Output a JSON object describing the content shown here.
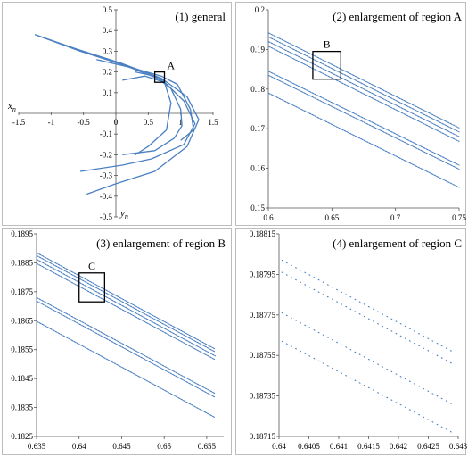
{
  "chart_data": [
    {
      "type": "scatter",
      "title": "(1) general",
      "xlabel": "x",
      "xlabel_sub": "n",
      "ylabel": "y",
      "ylabel_sub": "n",
      "xlim": [
        -1.5,
        1.5
      ],
      "ylim": [
        -0.5,
        0.5
      ],
      "x_ticks": [
        "-1.5",
        "-1",
        "-0.5",
        "0",
        "0.5",
        "1",
        "1.5"
      ],
      "y_ticks": [
        "0.5",
        "0.4",
        "0.3",
        "0.2",
        "0.1",
        "0",
        "-0.1",
        "-0.2",
        "-0.3",
        "-0.4",
        "-0.5"
      ],
      "marker_color": "#4a7fc1",
      "box_label": "A",
      "box_region": {
        "x": [
          0.6,
          0.75
        ],
        "y": [
          0.15,
          0.2
        ]
      },
      "series": [
        {
          "values": [
            [
              -1.25,
              0.38
            ],
            [
              -0.6,
              0.31
            ],
            [
              0.1,
              0.24
            ],
            [
              0.7,
              0.17
            ],
            [
              1.1,
              0.08
            ],
            [
              1.28,
              -0.03
            ],
            [
              1.1,
              -0.16
            ],
            [
              0.6,
              -0.28
            ],
            [
              0.0,
              -0.34
            ],
            [
              -0.45,
              -0.39
            ]
          ]
        },
        {
          "values": [
            [
              -1.25,
              0.38
            ],
            [
              -0.55,
              0.3
            ],
            [
              0.15,
              0.23
            ],
            [
              0.72,
              0.16
            ],
            [
              1.05,
              0.06
            ],
            [
              1.22,
              -0.05
            ],
            [
              1.05,
              -0.15
            ],
            [
              0.55,
              -0.22
            ],
            [
              0.1,
              -0.25
            ],
            [
              -0.55,
              -0.28
            ]
          ]
        },
        {
          "values": [
            [
              0.3,
              0.2
            ],
            [
              0.6,
              0.18
            ],
            [
              0.85,
              0.12
            ],
            [
              1.0,
              0.02
            ],
            [
              1.02,
              -0.06
            ],
            [
              0.9,
              -0.12
            ],
            [
              0.6,
              -0.18
            ],
            [
              0.1,
              -0.2
            ]
          ]
        },
        {
          "values": [
            [
              0.1,
              0.16
            ],
            [
              0.45,
              0.18
            ],
            [
              0.75,
              0.15
            ],
            [
              0.85,
              0.05
            ],
            [
              0.78,
              -0.08
            ],
            [
              0.5,
              -0.16
            ],
            [
              0.3,
              -0.2
            ]
          ]
        },
        {
          "values": [
            [
              -0.3,
              0.26
            ],
            [
              0.25,
              0.22
            ],
            [
              0.7,
              0.18
            ],
            [
              0.95,
              0.14
            ],
            [
              1.15,
              0.02
            ],
            [
              1.2,
              -0.08
            ],
            [
              1.0,
              -0.13
            ]
          ]
        }
      ]
    },
    {
      "type": "scatter",
      "title": "(2) enlargement of region A",
      "xlim": [
        0.6,
        0.75
      ],
      "ylim": [
        0.15,
        0.2
      ],
      "x_ticks": [
        "0.6",
        "0.65",
        "0.7",
        "0.75"
      ],
      "y_ticks": [
        "0.2",
        "0.19",
        "0.18",
        "0.17",
        "0.16",
        "0.15"
      ],
      "marker_color": "#4a7fc1",
      "box_label": "B",
      "box_region": {
        "x": [
          0.635,
          0.657
        ],
        "y": [
          0.1825,
          0.1895
        ]
      },
      "series": [
        {
          "values": [
            [
              0.6,
              0.1942
            ],
            [
              0.75,
              0.1702
            ]
          ]
        },
        {
          "values": [
            [
              0.6,
              0.1932
            ],
            [
              0.75,
              0.1692
            ]
          ]
        },
        {
          "values": [
            [
              0.6,
              0.192
            ],
            [
              0.75,
              0.168
            ]
          ]
        },
        {
          "values": [
            [
              0.6,
              0.1908
            ],
            [
              0.75,
              0.1668
            ]
          ]
        },
        {
          "values": [
            [
              0.6,
              0.1845
            ],
            [
              0.75,
              0.1608
            ]
          ]
        },
        {
          "values": [
            [
              0.6,
              0.1835
            ],
            [
              0.75,
              0.1598
            ]
          ]
        },
        {
          "values": [
            [
              0.6,
              0.179
            ],
            [
              0.75,
              0.1552
            ]
          ]
        }
      ]
    },
    {
      "type": "scatter",
      "title": "(3) enlargement of region B",
      "xlim": [
        0.635,
        0.657
      ],
      "ylim": [
        0.1825,
        0.1895
      ],
      "x_ticks": [
        "0.635",
        "0.64",
        "0.645",
        "0.65",
        "0.655"
      ],
      "y_ticks": [
        "0.1895",
        "0.1885",
        "0.1875",
        "0.1865",
        "0.1855",
        "0.1845",
        "0.1835",
        "0.1825"
      ],
      "marker_color": "#4a7fc1",
      "box_label": "C",
      "box_region": {
        "x": [
          0.64,
          0.643
        ],
        "y": [
          0.18715,
          0.18815
        ]
      },
      "series": [
        {
          "values": [
            [
              0.635,
              0.18885
            ],
            [
              0.656,
              0.18552
            ]
          ]
        },
        {
          "values": [
            [
              0.635,
              0.18875
            ],
            [
              0.656,
              0.18542
            ]
          ]
        },
        {
          "values": [
            [
              0.635,
              0.18862
            ],
            [
              0.656,
              0.18528
            ]
          ]
        },
        {
          "values": [
            [
              0.635,
              0.18848
            ],
            [
              0.656,
              0.18515
            ]
          ]
        },
        {
          "values": [
            [
              0.635,
              0.1873
            ],
            [
              0.656,
              0.18398
            ]
          ]
        },
        {
          "values": [
            [
              0.635,
              0.18718
            ],
            [
              0.656,
              0.18385
            ]
          ]
        },
        {
          "values": [
            [
              0.635,
              0.18648
            ],
            [
              0.656,
              0.18315
            ]
          ]
        }
      ]
    },
    {
      "type": "scatter",
      "title": "(4)  enlargement of region C",
      "xlim": [
        0.64,
        0.643
      ],
      "ylim": [
        0.18715,
        0.18815
      ],
      "x_ticks": [
        "0.64",
        "0.6405",
        "0.641",
        "0.6415",
        "0.642",
        "0.6425",
        "0.643"
      ],
      "y_ticks": [
        "0.18815",
        "0.18795",
        "0.18775",
        "0.18755",
        "0.18735",
        "0.18715"
      ],
      "marker_color": "#4a7fc1",
      "series": [
        {
          "values": [
            [
              0.64005,
              0.18802
            ],
            [
              0.6429,
              0.18757
            ]
          ]
        },
        {
          "values": [
            [
              0.64005,
              0.18796
            ],
            [
              0.6429,
              0.18751
            ]
          ]
        },
        {
          "values": [
            [
              0.64005,
              0.18776
            ],
            [
              0.6429,
              0.18731
            ]
          ]
        },
        {
          "values": [
            [
              0.64005,
              0.18762
            ],
            [
              0.6429,
              0.18717
            ]
          ]
        }
      ]
    }
  ]
}
